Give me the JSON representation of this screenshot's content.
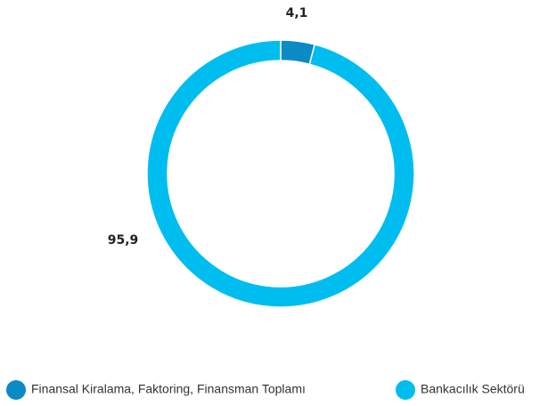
{
  "chart_data": {
    "type": "pie",
    "categories": [
      "Finansal Kiralama, Faktoring, Finansman Toplamı",
      "Bankacılık Sektörü"
    ],
    "values": [
      4.1,
      95.9
    ],
    "value_labels": [
      "4,1",
      "95,9"
    ],
    "colors": [
      "#0b8bc6",
      "#00bdf0"
    ],
    "donut": true,
    "legend": "bottom"
  }
}
